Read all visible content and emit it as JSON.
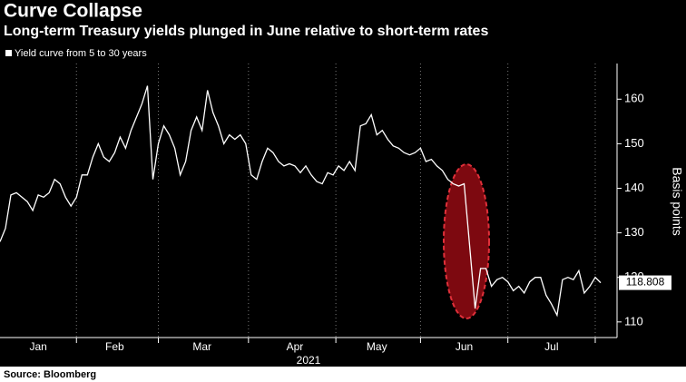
{
  "chart_data": {
    "type": "line",
    "title": "Curve Collapse",
    "subtitle": "Long-term Treasury yields plunged in June relative to short-term rates",
    "source": "Source: Bloomberg",
    "y_label": "Basis points",
    "x_sublabel": "2021",
    "categories": [
      null,
      null,
      null,
      null,
      null,
      null,
      null,
      "Jan",
      null,
      null,
      null,
      null,
      null,
      null,
      null,
      null,
      null,
      null,
      null,
      null,
      null,
      "Feb",
      null,
      null,
      null,
      null,
      null,
      null,
      null,
      null,
      null,
      null,
      null,
      null,
      null,
      null,
      null,
      "Mar",
      null,
      null,
      null,
      null,
      null,
      null,
      null,
      null,
      null,
      null,
      null,
      null,
      null,
      null,
      null,
      null,
      "Apr",
      null,
      null,
      null,
      null,
      null,
      null,
      null,
      null,
      null,
      null,
      null,
      null,
      null,
      null,
      "May",
      null,
      null,
      null,
      null,
      null,
      null,
      null,
      null,
      null,
      null,
      null,
      null,
      null,
      null,
      null,
      "Jun",
      null,
      null,
      null,
      null,
      null,
      null,
      null,
      null,
      null,
      null,
      null,
      null,
      null,
      null,
      null,
      "Jul",
      null,
      null,
      null,
      null,
      null,
      null,
      null,
      null,
      null
    ],
    "series": [
      {
        "name": "Yield curve from 5 to 30 years",
        "color": "#ffffff",
        "values": [
          128,
          131,
          138.5,
          139,
          138,
          137,
          135,
          138.5,
          138,
          139,
          142,
          141,
          138,
          136,
          138,
          143,
          143,
          147,
          150,
          147,
          146,
          148,
          151.5,
          149,
          153,
          156,
          159,
          163,
          142,
          150,
          154,
          152,
          149,
          143,
          146,
          153,
          156,
          153,
          162,
          157,
          154,
          150,
          152,
          151,
          152,
          150,
          143,
          142,
          146,
          149,
          148,
          146,
          145,
          145.5,
          145,
          143.5,
          145,
          143,
          141.5,
          141,
          143.5,
          143,
          145,
          144,
          146,
          144,
          154,
          154.5,
          156.5,
          152,
          153,
          151,
          149.5,
          149,
          148,
          147.5,
          148,
          149,
          146,
          146.5,
          145,
          144,
          142,
          141,
          140.5,
          141,
          127,
          113,
          122,
          122,
          118,
          119.5,
          120,
          119,
          117,
          118,
          116.5,
          119,
          120,
          120,
          116,
          114,
          111.5,
          119.5,
          120,
          119.5,
          121.5,
          116.5,
          118,
          120,
          118.808
        ]
      }
    ],
    "ylim": [
      106.5,
      168
    ],
    "yticks": [
      110,
      120,
      130,
      140,
      150,
      160
    ],
    "grid": "x"
  }
}
